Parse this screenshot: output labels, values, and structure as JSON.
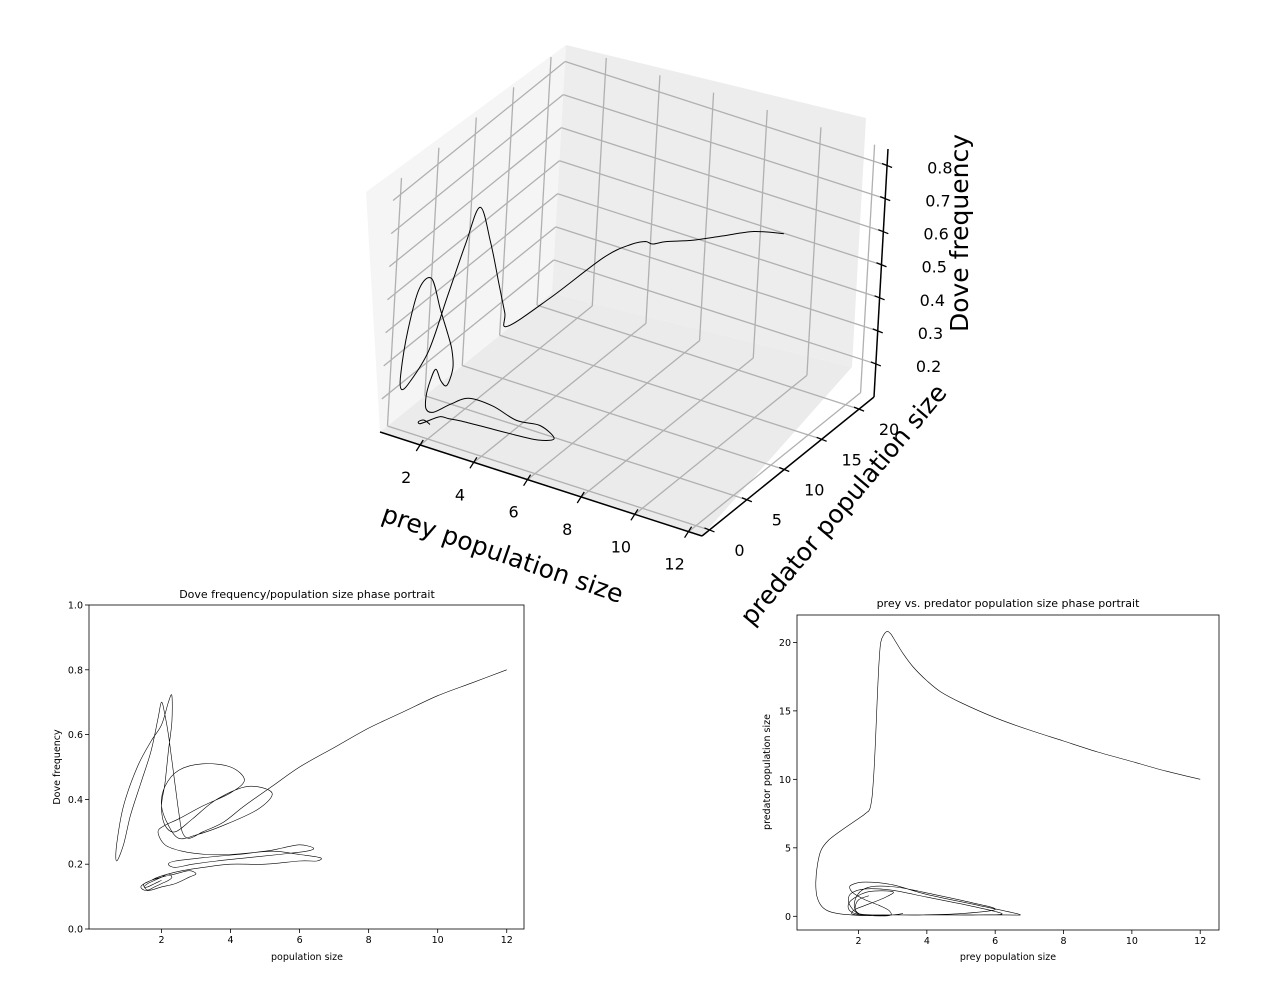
{
  "chart_data": [
    {
      "type": "line3d",
      "title": "",
      "xlabel": "prey population size",
      "ylabel": "predator population size",
      "zlabel": "Dove frequency",
      "x_ticks": [
        2,
        4,
        6,
        8,
        10,
        12
      ],
      "y_ticks": [
        0,
        5,
        10,
        15,
        20
      ],
      "z_ticks": [
        0.2,
        0.3,
        0.4,
        0.5,
        0.6,
        0.7,
        0.8
      ],
      "xlim": [
        0.5,
        12.5
      ],
      "ylim": [
        -1,
        22
      ],
      "zlim": [
        0.1,
        0.85
      ],
      "grid": true,
      "line_color": "#000000",
      "series": [
        {
          "x": [
            12,
            10.5,
            9,
            7.5,
            6,
            5,
            4.2,
            3.6,
            3.1,
            2.8,
            2.7,
            2.6,
            2.4,
            2.2,
            2.0,
            1.8,
            1.5,
            1.2,
            0.9,
            0.8,
            0.8,
            1.0,
            1.3,
            1.6,
            1.8,
            2.0,
            2.1,
            2.2,
            2.2,
            2.1,
            2.0,
            1.9,
            1.8,
            1.8,
            2.0,
            2.4,
            3.0,
            4.0,
            5.0,
            6.0,
            6.6,
            6.0,
            5.0,
            4.0,
            3.0,
            2.4,
            2.0,
            1.7,
            1.6,
            1.6,
            1.8,
            2.0
          ],
          "y": [
            10,
            11.5,
            13,
            14.5,
            16.5,
            18.5,
            20.5,
            20.8,
            19,
            13,
            7.6,
            7.5,
            7.2,
            6.5,
            5.5,
            4.5,
            3.5,
            2.5,
            1.2,
            0.5,
            0.3,
            0.2,
            0.3,
            0.8,
            1.5,
            2.0,
            2.3,
            2.2,
            1.5,
            1.0,
            0.6,
            0.3,
            0.2,
            0.3,
            0.6,
            1.4,
            1.6,
            1.2,
            0.8,
            0.3,
            0.1,
            0.1,
            0.2,
            0.4,
            0.6,
            1.2,
            1.5,
            0.8,
            0.3,
            0.1,
            0.1,
            0.2
          ],
          "z": [
            0.8,
            0.74,
            0.66,
            0.58,
            0.5,
            0.43,
            0.38,
            0.35,
            0.33,
            0.31,
            0.32,
            0.36,
            0.45,
            0.58,
            0.7,
            0.6,
            0.45,
            0.3,
            0.22,
            0.21,
            0.26,
            0.4,
            0.53,
            0.56,
            0.46,
            0.38,
            0.33,
            0.28,
            0.24,
            0.26,
            0.3,
            0.27,
            0.22,
            0.18,
            0.17,
            0.19,
            0.22,
            0.23,
            0.22,
            0.24,
            0.22,
            0.2,
            0.19,
            0.18,
            0.17,
            0.15,
            0.14,
            0.13,
            0.13,
            0.14,
            0.15,
            0.14
          ]
        }
      ]
    },
    {
      "type": "line",
      "title": "Dove frequency/population size phase portrait",
      "xlabel": "population size",
      "ylabel": "Dove frequency",
      "xlim": [
        -0.1,
        12.5
      ],
      "ylim": [
        0.0,
        1.0
      ],
      "x_ticks": [
        2,
        4,
        6,
        8,
        10,
        12
      ],
      "y_ticks": [
        0.0,
        0.2,
        0.4,
        0.6,
        0.8,
        1.0
      ],
      "grid": false,
      "line_color": "#000000",
      "series": [
        {
          "x": [
            12.0,
            11.0,
            10.0,
            9.0,
            8.0,
            7.0,
            6.0,
            5.2,
            4.4,
            3.8,
            3.2,
            2.8,
            2.6,
            2.5,
            2.4,
            2.3,
            2.2,
            2.1,
            2.0,
            1.9,
            1.7,
            1.4,
            1.1,
            0.9,
            0.7,
            0.7,
            0.9,
            1.3,
            1.7,
            2.0,
            2.2,
            2.3,
            2.3,
            2.2,
            2.1,
            2.0,
            2.1,
            2.4,
            2.9,
            3.6,
            4.5,
            5.2,
            4.8,
            3.8,
            3.0,
            2.5,
            2.2,
            2.0,
            2.1,
            2.5,
            3.2,
            4.0,
            4.4,
            4.0,
            3.2,
            2.5,
            2.1,
            1.9,
            2.1,
            2.6,
            3.3,
            4.0,
            5.0,
            5.5,
            6.0,
            6.4,
            6.2,
            5.4,
            4.5,
            3.6,
            2.9,
            2.4,
            2.2,
            2.4,
            3.2,
            4.2,
            5.2,
            6.0,
            6.6,
            6.5,
            6.0,
            5.0,
            4.0,
            3.2,
            2.6,
            2.2,
            1.9,
            1.7,
            1.5,
            1.4,
            1.5,
            1.7,
            2.0,
            2.4,
            2.8,
            3.0,
            2.8,
            2.4,
            2.0,
            1.7,
            1.5,
            1.5,
            1.6,
            1.8,
            2.0,
            2.2,
            2.3,
            2.2,
            2.0,
            1.8,
            1.6,
            1.5,
            1.6,
            1.8,
            2.0
          ],
          "y": [
            0.8,
            0.76,
            0.72,
            0.67,
            0.62,
            0.56,
            0.5,
            0.44,
            0.38,
            0.33,
            0.3,
            0.28,
            0.3,
            0.36,
            0.44,
            0.52,
            0.6,
            0.66,
            0.7,
            0.65,
            0.55,
            0.45,
            0.35,
            0.26,
            0.21,
            0.26,
            0.38,
            0.5,
            0.58,
            0.63,
            0.7,
            0.72,
            0.64,
            0.55,
            0.45,
            0.38,
            0.32,
            0.3,
            0.34,
            0.4,
            0.44,
            0.42,
            0.37,
            0.32,
            0.29,
            0.28,
            0.32,
            0.38,
            0.44,
            0.49,
            0.51,
            0.5,
            0.46,
            0.42,
            0.38,
            0.34,
            0.32,
            0.3,
            0.26,
            0.24,
            0.23,
            0.23,
            0.24,
            0.25,
            0.26,
            0.25,
            0.24,
            0.23,
            0.22,
            0.21,
            0.2,
            0.19,
            0.2,
            0.21,
            0.22,
            0.23,
            0.24,
            0.23,
            0.22,
            0.21,
            0.21,
            0.2,
            0.2,
            0.19,
            0.18,
            0.17,
            0.16,
            0.15,
            0.14,
            0.13,
            0.12,
            0.12,
            0.13,
            0.14,
            0.16,
            0.17,
            0.18,
            0.17,
            0.16,
            0.15,
            0.14,
            0.13,
            0.12,
            0.13,
            0.14,
            0.15,
            0.16,
            0.17,
            0.16,
            0.15,
            0.14,
            0.13,
            0.13,
            0.14,
            0.15
          ]
        }
      ]
    },
    {
      "type": "line",
      "title": "prey vs. predator population size phase portrait",
      "xlabel": "prey population size",
      "ylabel": "predator population size",
      "xlim": [
        0.2,
        12.55
      ],
      "ylim": [
        -1.0,
        22.0
      ],
      "x_ticks": [
        2,
        4,
        6,
        8,
        10,
        12
      ],
      "y_ticks": [
        0,
        5,
        10,
        15,
        20
      ],
      "grid": false,
      "line_color": "#000000",
      "series": [
        {
          "x": [
            12.0,
            11.0,
            10.0,
            9.0,
            8.0,
            7.0,
            6.0,
            5.0,
            4.4,
            4.0,
            3.6,
            3.3,
            3.1,
            2.95,
            2.85,
            2.75,
            2.65,
            2.6,
            2.55,
            2.5,
            2.45,
            2.4,
            2.35,
            2.3,
            2.25,
            2.2,
            2.1,
            1.8,
            1.4,
            1.1,
            0.9,
            0.8,
            0.75,
            0.78,
            0.9,
            1.1,
            1.4,
            1.8,
            2.3,
            2.9,
            2.9,
            2.6,
            2.2,
            1.9,
            1.75,
            1.8,
            2.2,
            3.0,
            4.0,
            5.5,
            6.7,
            6.3,
            5.0,
            3.8,
            3.0,
            2.4,
            2.0,
            1.8,
            1.7,
            1.8,
            2.2,
            3.0,
            4.0,
            5.2,
            6.2,
            5.5,
            4.3,
            3.2,
            2.4,
            1.9,
            1.7,
            1.8,
            2.3,
            3.0,
            2.8,
            2.2,
            1.9,
            1.8,
            2.0,
            2.4,
            3.0,
            3.3,
            3.0,
            2.5,
            2.1,
            1.9,
            1.9,
            2.1,
            2.5,
            3.2,
            4.2,
            5.3,
            6.0,
            5.0,
            3.9,
            3.0,
            2.4,
            2.0,
            1.9,
            2.0,
            2.3
          ],
          "y": [
            10.0,
            10.6,
            11.3,
            12.0,
            12.8,
            13.6,
            14.5,
            15.6,
            16.4,
            17.2,
            18.2,
            19.2,
            20.0,
            20.6,
            20.8,
            20.6,
            20.0,
            18.5,
            16.0,
            13.0,
            10.5,
            8.8,
            8.0,
            7.7,
            7.6,
            7.5,
            7.3,
            6.8,
            6.1,
            5.5,
            4.8,
            3.8,
            2.5,
            1.5,
            0.8,
            0.4,
            0.2,
            0.1,
            0.05,
            0.05,
            0.4,
            0.8,
            1.2,
            1.6,
            2.0,
            2.3,
            2.5,
            2.3,
            1.6,
            0.8,
            0.15,
            0.1,
            0.1,
            0.1,
            0.1,
            0.1,
            0.2,
            0.6,
            1.2,
            1.7,
            2.0,
            1.9,
            1.4,
            0.8,
            0.2,
            0.1,
            0.1,
            0.1,
            0.1,
            0.2,
            0.6,
            1.2,
            1.8,
            1.8,
            1.4,
            0.8,
            0.5,
            0.2,
            0.1,
            0.1,
            0.1,
            0.2,
            0.1,
            0.05,
            0.1,
            0.5,
            1.2,
            1.9,
            2.2,
            2.1,
            1.6,
            1.0,
            0.5,
            0.2,
            0.1,
            0.1,
            0.1,
            0.2,
            0.6,
            1.2,
            1.5
          ]
        }
      ]
    }
  ]
}
